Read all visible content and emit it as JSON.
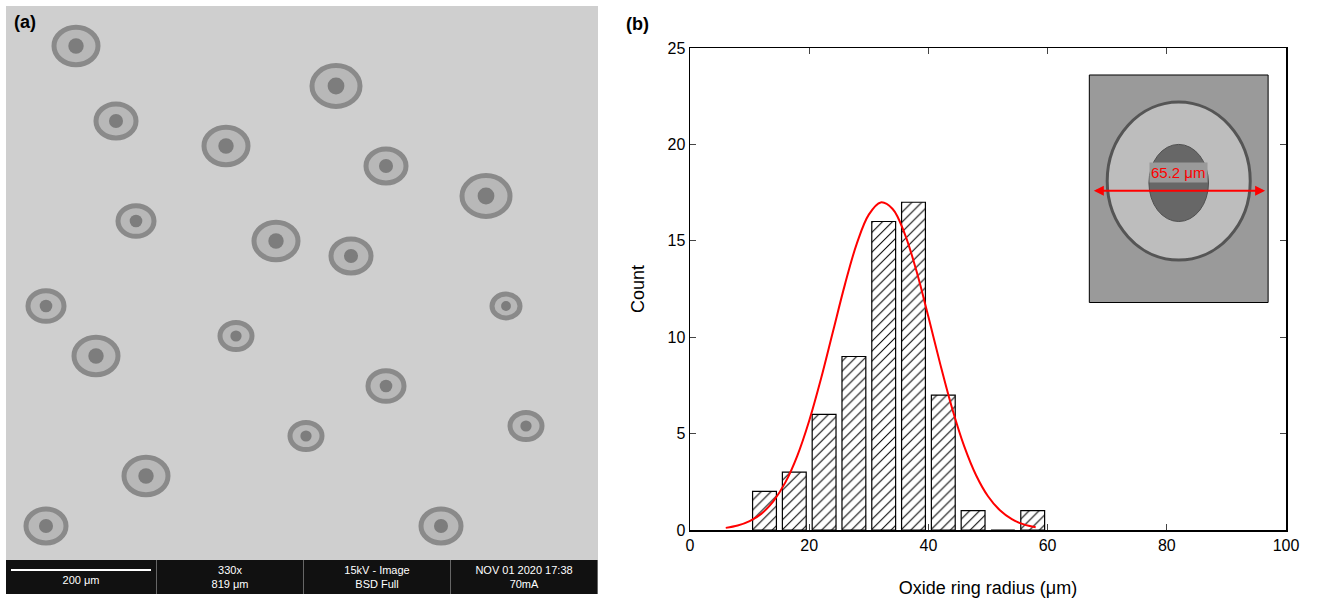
{
  "panel_a": {
    "label": "(a)",
    "scale_bar": "200 μm",
    "info": [
      [
        "330x",
        "819 μm"
      ],
      [
        "15kV - Image",
        "BSD Full"
      ],
      [
        "NOV 01 2020 17:38",
        "70mA"
      ]
    ]
  },
  "chart_data": {
    "label": "(b)",
    "type": "histogram",
    "x_label": "Oxide ring radius (μm)",
    "y_label": "Count",
    "bins": [
      10,
      15,
      20,
      25,
      30,
      35,
      40,
      45,
      50,
      55,
      60
    ],
    "counts": [
      2,
      3,
      6,
      9,
      16,
      17,
      7,
      1,
      0,
      1
    ],
    "color": "#ffffff",
    "marker": "hatch",
    "fit": {
      "type": "line",
      "color": "#ff0000",
      "x": [
        6,
        8,
        10,
        12,
        14,
        16,
        18,
        20,
        22,
        24,
        26,
        28,
        30,
        32,
        34,
        36,
        38,
        40,
        42,
        44,
        46,
        48,
        50,
        52,
        54,
        56,
        58
      ],
      "values": [
        0.11,
        0.23,
        0.46,
        0.85,
        1.5,
        2.47,
        3.85,
        5.67,
        7.87,
        10.31,
        12.74,
        14.87,
        16.36,
        16.99,
        16.65,
        15.39,
        13.43,
        11.06,
        8.59,
        6.29,
        4.35,
        2.84,
        1.75,
        1.02,
        0.56,
        0.29,
        0.14
      ]
    },
    "annotations": [
      "65.2 μm"
    ],
    "xlim": [
      0,
      100
    ],
    "xticks": [
      0,
      20,
      40,
      60,
      80,
      100
    ],
    "ylim": [
      0,
      25
    ],
    "yticks": [
      0,
      5,
      10,
      15,
      20,
      25
    ],
    "grid": false
  }
}
